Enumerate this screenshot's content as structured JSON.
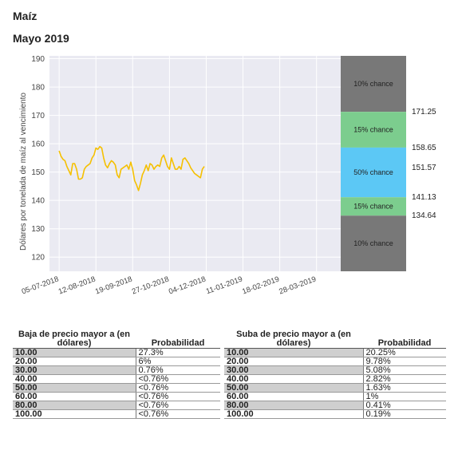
{
  "header": {
    "title": "Maíz",
    "subtitle": "Mayo 2019"
  },
  "chart_data": {
    "type": "line",
    "ylabel": "Dólares por tonelada de maíz al vencimiento",
    "ylim": [
      115,
      191
    ],
    "yticks": [
      120,
      130,
      140,
      150,
      160,
      170,
      180,
      190
    ],
    "xticks": [
      "05-07-2018",
      "12-08-2018",
      "19-09-2018",
      "27-10-2018",
      "04-12-2018",
      "11-01-2019",
      "18-02-2019",
      "28-03-2019"
    ],
    "xrange": [
      "2018-06-25",
      "2019-04-22"
    ],
    "grid": true,
    "line_color": "#f5c000",
    "series": [
      {
        "x": [
          "2018-07-05",
          "2018-07-07",
          "2018-07-09",
          "2018-07-11",
          "2018-07-13",
          "2018-07-15",
          "2018-07-17",
          "2018-07-19",
          "2018-07-21",
          "2018-07-23",
          "2018-07-25",
          "2018-07-27",
          "2018-07-29",
          "2018-07-31",
          "2018-08-02",
          "2018-08-04",
          "2018-08-06",
          "2018-08-08",
          "2018-08-10",
          "2018-08-12",
          "2018-08-14",
          "2018-08-16",
          "2018-08-18",
          "2018-08-20",
          "2018-08-22",
          "2018-08-24",
          "2018-08-26",
          "2018-08-28",
          "2018-08-30",
          "2018-09-01",
          "2018-09-03",
          "2018-09-05",
          "2018-09-07",
          "2018-09-09",
          "2018-09-11",
          "2018-09-13",
          "2018-09-15",
          "2018-09-17",
          "2018-09-19",
          "2018-09-21",
          "2018-09-23",
          "2018-09-25",
          "2018-09-27",
          "2018-09-29",
          "2018-10-01",
          "2018-10-03",
          "2018-10-05",
          "2018-10-07",
          "2018-10-09",
          "2018-10-11",
          "2018-10-13",
          "2018-10-15",
          "2018-10-17",
          "2018-10-19",
          "2018-10-21",
          "2018-10-23",
          "2018-10-25",
          "2018-10-27",
          "2018-10-29",
          "2018-10-31",
          "2018-11-02",
          "2018-11-04",
          "2018-11-06",
          "2018-11-08",
          "2018-11-10",
          "2018-11-12",
          "2018-11-14",
          "2018-11-16",
          "2018-11-18",
          "2018-11-20",
          "2018-11-22",
          "2018-11-24",
          "2018-11-26",
          "2018-11-28",
          "2018-11-30",
          "2018-12-02"
        ],
        "y": [
          157.5,
          155.5,
          154.5,
          154,
          152,
          150.5,
          149,
          153,
          153,
          151,
          147.5,
          147.5,
          148,
          151,
          152,
          152.5,
          153,
          155,
          156,
          158.5,
          158,
          159,
          158.5,
          155,
          152.5,
          151.5,
          153,
          154,
          153.5,
          152.5,
          149,
          148,
          151,
          151.5,
          152,
          152.5,
          151,
          153.5,
          151,
          147,
          145.5,
          143.5,
          146,
          149,
          150.5,
          152.5,
          150.5,
          153,
          152.5,
          151,
          152,
          152.5,
          152,
          155,
          156,
          154,
          152,
          151,
          155,
          153,
          151,
          151,
          152,
          151,
          154.5,
          155,
          154,
          153,
          151.5,
          150.5,
          149.5,
          149,
          148.5,
          148,
          151,
          152
        ]
      }
    ],
    "bands": [
      {
        "label": "10% chance",
        "from": 171.25,
        "to": 191,
        "color": "#787878"
      },
      {
        "label": "15% chance",
        "from": 158.65,
        "to": 171.25,
        "color": "#7ccd8e"
      },
      {
        "label": "50% chance",
        "from": 141.13,
        "to": 158.65,
        "color": "#5cc8f5"
      },
      {
        "label": "15% chance",
        "from": 134.64,
        "to": 141.13,
        "color": "#7ccd8e"
      },
      {
        "label": "10% chance",
        "from": 115,
        "to": 134.64,
        "color": "#787878"
      }
    ],
    "band_edge_labels": [
      "171.25",
      "158.65",
      "151.57",
      "141.13",
      "134.64"
    ],
    "band_edge_values": [
      171.25,
      158.65,
      151.57,
      141.13,
      134.64
    ]
  },
  "tables": {
    "left": {
      "header_col1": "Baja de precio mayor a (en dólares)",
      "header_col2": "Probabilidad",
      "rows": [
        {
          "k": "10.00",
          "v": "27.3%"
        },
        {
          "k": "20.00",
          "v": "6%"
        },
        {
          "k": "30.00",
          "v": "0.76%"
        },
        {
          "k": "40.00",
          "v": "<0.76%"
        },
        {
          "k": "50.00",
          "v": "<0.76%"
        },
        {
          "k": "60.00",
          "v": "<0.76%"
        },
        {
          "k": "80.00",
          "v": "<0.76%"
        },
        {
          "k": "100.00",
          "v": "<0.76%"
        }
      ]
    },
    "right": {
      "header_col1": "Suba de precio mayor a (en dólares)",
      "header_col2": "Probabilidad",
      "rows": [
        {
          "k": "10.00",
          "v": "20.25%"
        },
        {
          "k": "20.00",
          "v": "9.78%"
        },
        {
          "k": "30.00",
          "v": "5.08%"
        },
        {
          "k": "40.00",
          "v": "2.82%"
        },
        {
          "k": "50.00",
          "v": "1.63%"
        },
        {
          "k": "60.00",
          "v": "1%"
        },
        {
          "k": "80.00",
          "v": "0.41%"
        },
        {
          "k": "100.00",
          "v": "0.19%"
        }
      ]
    }
  }
}
